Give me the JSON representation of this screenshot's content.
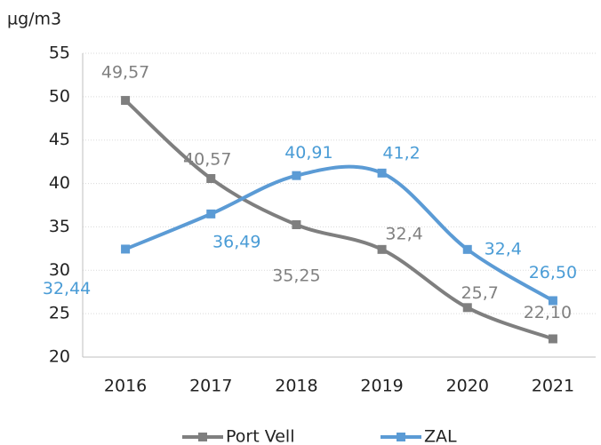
{
  "chart_data": {
    "type": "line",
    "y_label": "µg/m3",
    "categories": [
      "2016",
      "2017",
      "2018",
      "2019",
      "2020",
      "2021"
    ],
    "series": [
      {
        "name": "Port Vell",
        "color": "#7f7f7f",
        "label_color": "#808080",
        "values": [
          49.57,
          40.57,
          35.25,
          32.4,
          25.7,
          22.1
        ],
        "value_labels": [
          "49,57",
          "40,57",
          "35,25",
          "32,4",
          "25,7",
          "22,10"
        ]
      },
      {
        "name": "ZAL",
        "color": "#5b9bd5",
        "label_color": "#4a9cd6",
        "values": [
          32.44,
          36.49,
          40.91,
          41.2,
          32.4,
          26.5
        ],
        "value_labels": [
          "32,44",
          "36,49",
          "40,91",
          "41,2",
          "32,4",
          "26,50"
        ]
      }
    ],
    "ylim": [
      20,
      55
    ],
    "yticks": [
      20,
      25,
      30,
      35,
      40,
      45,
      50,
      55
    ],
    "grid": true,
    "smooth": true,
    "legend": "bottom"
  }
}
